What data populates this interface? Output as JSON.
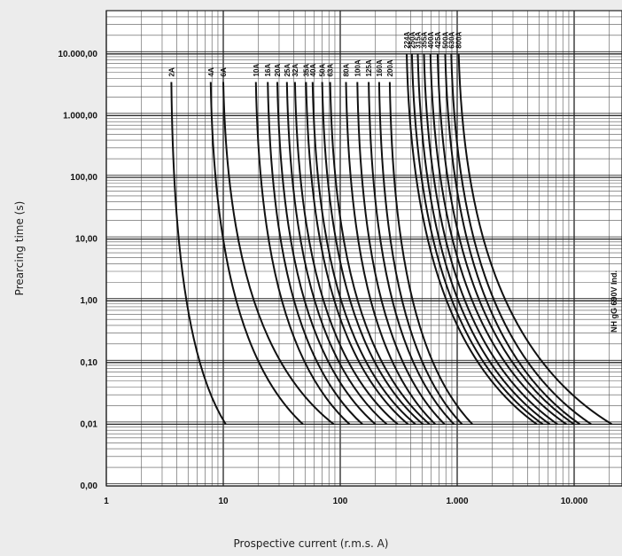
{
  "chart_data": {
    "type": "line",
    "xlabel": "Prospective current (r.m.s. A)",
    "ylabel": "Prearcing time (s)",
    "x_scale": "log",
    "y_scale": "log",
    "xlim": [
      1,
      25000
    ],
    "ylim": [
      0.001,
      25000
    ],
    "x_ticks": [
      {
        "value": 1,
        "label": "1"
      },
      {
        "value": 10,
        "label": "10"
      },
      {
        "value": 100,
        "label": "100"
      },
      {
        "value": 1000,
        "label": "1.000"
      },
      {
        "value": 10000,
        "label": "10.000"
      }
    ],
    "y_ticks": [
      {
        "value": 0.001,
        "label": "0,00"
      },
      {
        "value": 0.01,
        "label": "0,01"
      },
      {
        "value": 0.1,
        "label": "0,10"
      },
      {
        "value": 1,
        "label": "1,00"
      },
      {
        "value": 10,
        "label": "10,00"
      },
      {
        "value": 100,
        "label": "100,00"
      },
      {
        "value": 1000,
        "label": "1.000,00"
      },
      {
        "value": 10000,
        "label": "10.000,00"
      }
    ],
    "grid": true,
    "side_label": "NH gG 690V Ind.",
    "series": [
      {
        "name": "2A",
        "x_top": 3.6,
        "x_bottom": 10.5,
        "t_top": 3500
      },
      {
        "name": "4A",
        "x_top": 7.8,
        "x_bottom": 48,
        "t_top": 3500
      },
      {
        "name": "6A",
        "x_top": 10,
        "x_bottom": 88,
        "t_top": 3500
      },
      {
        "name": "10A",
        "x_top": 19,
        "x_bottom": 120,
        "t_top": 3500
      },
      {
        "name": "16A",
        "x_top": 24,
        "x_bottom": 155,
        "t_top": 3500
      },
      {
        "name": "20A",
        "x_top": 29,
        "x_bottom": 200,
        "t_top": 3500
      },
      {
        "name": "25A",
        "x_top": 35,
        "x_bottom": 250,
        "t_top": 3500
      },
      {
        "name": "32A",
        "x_top": 41,
        "x_bottom": 310,
        "t_top": 3500
      },
      {
        "name": "35A",
        "x_top": 51,
        "x_bottom": 380,
        "t_top": 3500
      },
      {
        "name": "40A",
        "x_top": 58,
        "x_bottom": 440,
        "t_top": 3500
      },
      {
        "name": "50A",
        "x_top": 70,
        "x_bottom": 510,
        "t_top": 3500
      },
      {
        "name": "63A",
        "x_top": 82,
        "x_bottom": 580,
        "t_top": 3500
      },
      {
        "name": "80A",
        "x_top": 112,
        "x_bottom": 650,
        "t_top": 3500
      },
      {
        "name": "100A",
        "x_top": 140,
        "x_bottom": 780,
        "t_top": 3500
      },
      {
        "name": "125A",
        "x_top": 175,
        "x_bottom": 940,
        "t_top": 3500
      },
      {
        "name": "160A",
        "x_top": 215,
        "x_bottom": 1100,
        "t_top": 3500
      },
      {
        "name": "200A",
        "x_top": 265,
        "x_bottom": 1350,
        "t_top": 3500
      },
      {
        "name": "224A",
        "x_top": 370,
        "x_bottom": 4800,
        "t_top": 10000
      },
      {
        "name": "250A",
        "x_top": 410,
        "x_bottom": 5400,
        "t_top": 10000
      },
      {
        "name": "315A",
        "x_top": 460,
        "x_bottom": 6200,
        "t_top": 10000
      },
      {
        "name": "355A",
        "x_top": 520,
        "x_bottom": 7200,
        "t_top": 10000
      },
      {
        "name": "400A",
        "x_top": 590,
        "x_bottom": 8600,
        "t_top": 10000
      },
      {
        "name": "425A",
        "x_top": 680,
        "x_bottom": 10000,
        "t_top": 10000
      },
      {
        "name": "500A",
        "x_top": 790,
        "x_bottom": 11200,
        "t_top": 10000
      },
      {
        "name": "630A",
        "x_top": 890,
        "x_bottom": 14000,
        "t_top": 10000
      },
      {
        "name": "800A",
        "x_top": 1030,
        "x_bottom": 21000,
        "t_top": 10000
      }
    ]
  }
}
